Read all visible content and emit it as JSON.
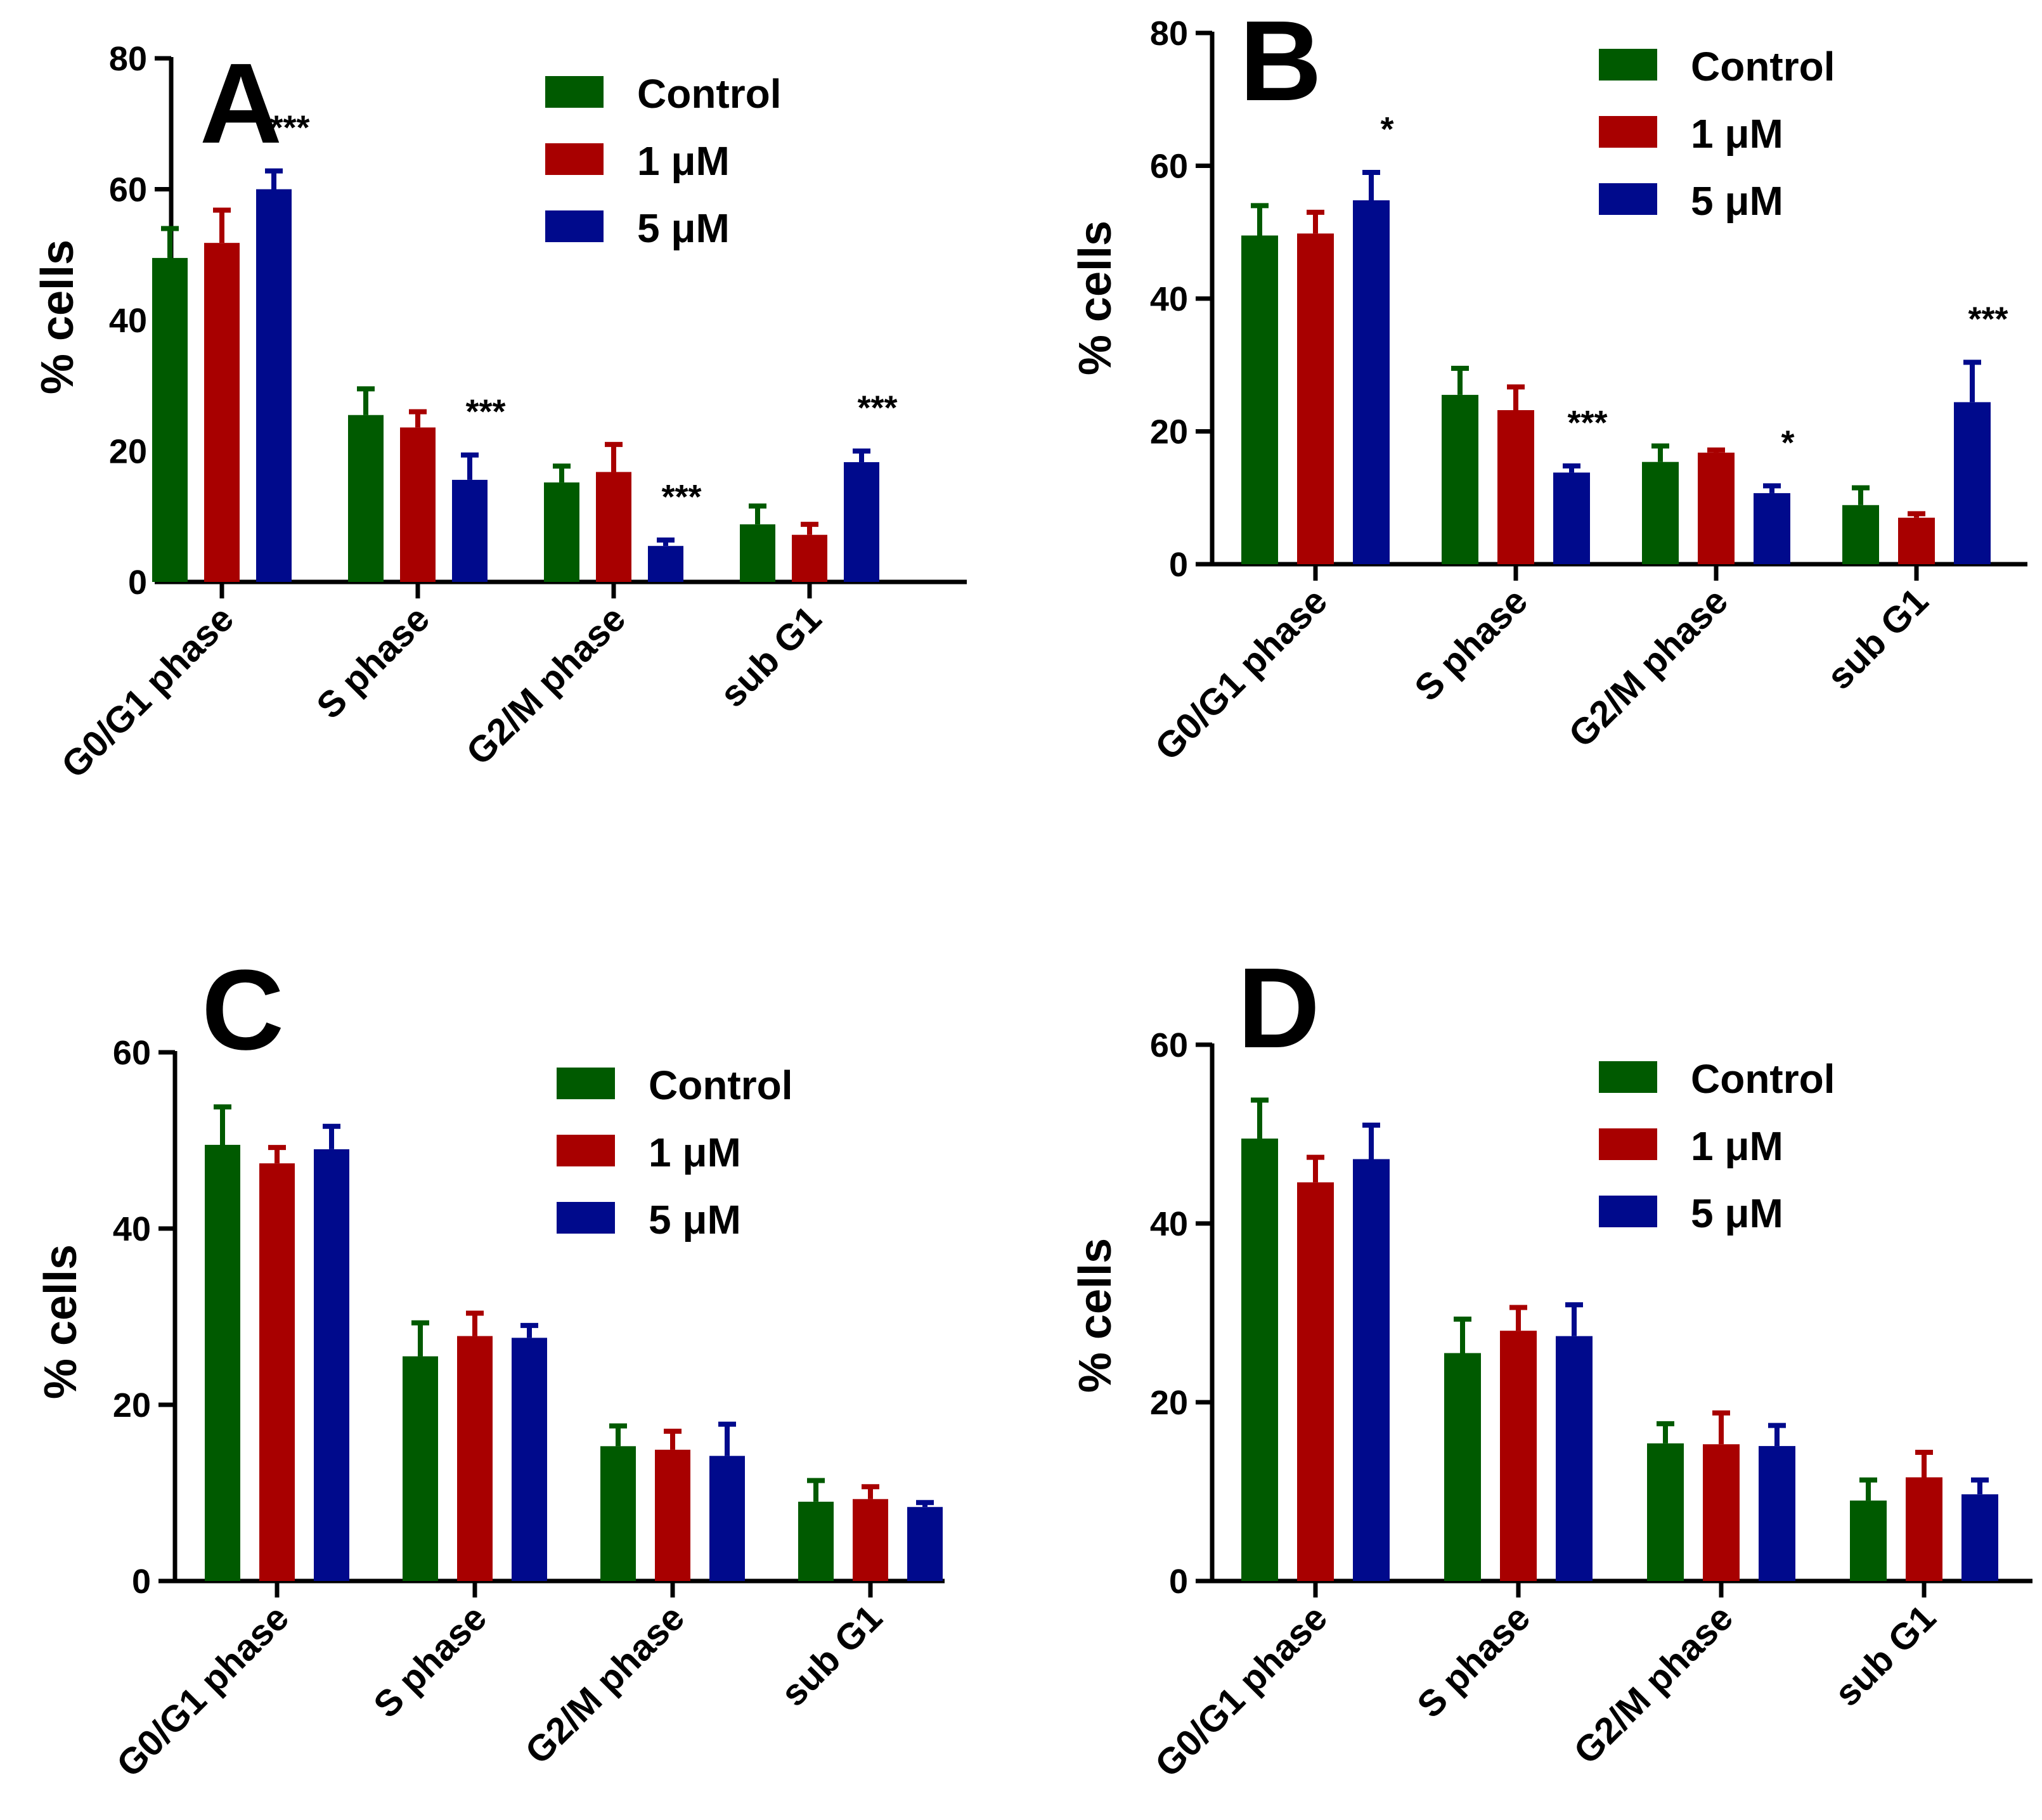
{
  "categories": [
    "G0/G1 phase",
    "S phase",
    "G2/M phase",
    "sub G1"
  ],
  "legend": {
    "entries": [
      {
        "name": "Control",
        "color": "#005a00"
      },
      {
        "name": "1 μM",
        "color": "#a80000"
      },
      {
        "name": "5 μM",
        "color": "#000a8c"
      }
    ]
  },
  "chart_data": [
    {
      "type": "bar",
      "panel_label": "A",
      "ylabel": "% cells",
      "ylim": [
        0,
        80
      ],
      "yticks": [
        0,
        20,
        40,
        60,
        80
      ],
      "categories": [
        "G0/G1 phase",
        "S phase",
        "G2/M phase",
        "sub G1"
      ],
      "series": [
        {
          "name": "Control",
          "values": [
            49.5,
            25.5,
            15.2,
            8.8
          ],
          "errors": [
            4.5,
            4.0,
            2.5,
            2.8
          ]
        },
        {
          "name": "1 μM",
          "values": [
            51.8,
            23.6,
            16.8,
            7.2
          ],
          "errors": [
            5.0,
            2.4,
            4.2,
            1.6
          ]
        },
        {
          "name": "5 μM",
          "values": [
            60.0,
            15.6,
            5.5,
            18.3
          ],
          "errors": [
            2.8,
            3.8,
            0.9,
            1.7
          ]
        }
      ],
      "significance": [
        {
          "category": "G0/G1 phase",
          "series": "5 μM",
          "label": "***"
        },
        {
          "category": "S phase",
          "series": "5 μM",
          "label": "***"
        },
        {
          "category": "G2/M phase",
          "series": "5 μM",
          "label": "***"
        },
        {
          "category": "sub G1",
          "series": "5 μM",
          "label": "***"
        }
      ]
    },
    {
      "type": "bar",
      "panel_label": "B",
      "ylabel": "% cells",
      "ylim": [
        0,
        80
      ],
      "yticks": [
        0,
        20,
        40,
        60,
        80
      ],
      "categories": [
        "G0/G1 phase",
        "S phase",
        "G2/M phase",
        "sub G1"
      ],
      "series": [
        {
          "name": "Control",
          "values": [
            49.5,
            25.5,
            15.4,
            8.9
          ],
          "errors": [
            4.5,
            4.0,
            2.4,
            2.6
          ]
        },
        {
          "name": "1 μM",
          "values": [
            49.8,
            23.2,
            16.8,
            7.0
          ],
          "errors": [
            3.2,
            3.5,
            0.4,
            0.6
          ]
        },
        {
          "name": "5 μM",
          "values": [
            54.8,
            13.8,
            10.7,
            24.4
          ],
          "errors": [
            4.2,
            1.0,
            1.1,
            6.0
          ]
        }
      ],
      "significance": [
        {
          "category": "G0/G1 phase",
          "series": "5 μM",
          "label": "*"
        },
        {
          "category": "S phase",
          "series": "5 μM",
          "label": "***"
        },
        {
          "category": "G2/M phase",
          "series": "5 μM",
          "label": "*"
        },
        {
          "category": "sub G1",
          "series": "5 μM",
          "label": "***"
        }
      ]
    },
    {
      "type": "bar",
      "panel_label": "C",
      "ylabel": "% cells",
      "ylim": [
        0,
        60
      ],
      "yticks": [
        0,
        20,
        40,
        60
      ],
      "categories": [
        "G0/G1 phase",
        "S phase",
        "G2/M phase",
        "sub G1"
      ],
      "series": [
        {
          "name": "Control",
          "values": [
            49.5,
            25.5,
            15.3,
            9.0
          ],
          "errors": [
            4.3,
            3.8,
            2.3,
            2.4
          ]
        },
        {
          "name": "1 μM",
          "values": [
            47.4,
            27.8,
            14.9,
            9.3
          ],
          "errors": [
            1.8,
            2.6,
            2.1,
            1.4
          ]
        },
        {
          "name": "5 μM",
          "values": [
            49.0,
            27.6,
            14.2,
            8.4
          ],
          "errors": [
            2.6,
            1.4,
            3.6,
            0.5
          ]
        }
      ],
      "significance": []
    },
    {
      "type": "bar",
      "panel_label": "D",
      "ylabel": "% cells",
      "ylim": [
        0,
        60
      ],
      "yticks": [
        0,
        20,
        40,
        60
      ],
      "categories": [
        "G0/G1 phase",
        "S phase",
        "G2/M phase",
        "sub G1"
      ],
      "series": [
        {
          "name": "Control",
          "values": [
            49.5,
            25.5,
            15.4,
            9.0
          ],
          "errors": [
            4.3,
            3.8,
            2.2,
            2.3
          ]
        },
        {
          "name": "1 μM",
          "values": [
            44.6,
            28.0,
            15.3,
            11.6
          ],
          "errors": [
            2.8,
            2.6,
            3.5,
            2.8
          ]
        },
        {
          "name": "5 μM",
          "values": [
            47.2,
            27.4,
            15.1,
            9.7
          ],
          "errors": [
            3.8,
            3.5,
            2.3,
            1.6
          ]
        }
      ],
      "significance": []
    }
  ]
}
